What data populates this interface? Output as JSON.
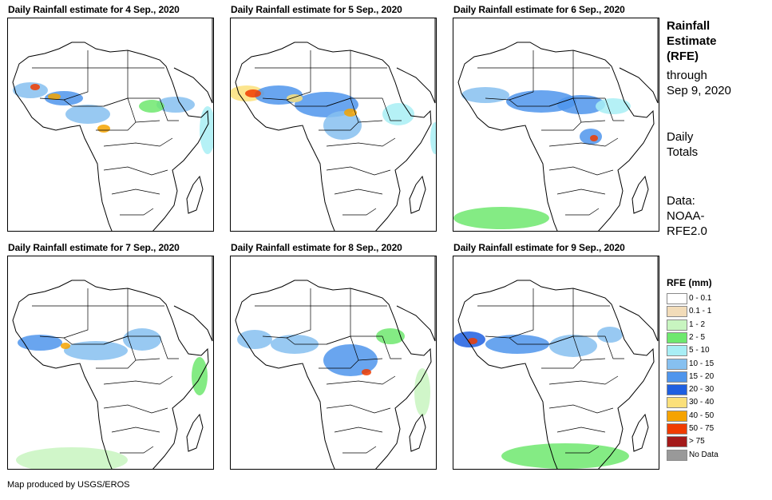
{
  "maps": [
    {
      "title": "Daily Rainfall estimate for 4 Sep., 2020"
    },
    {
      "title": "Daily Rainfall estimate for 5 Sep., 2020"
    },
    {
      "title": "Daily Rainfall estimate for 6 Sep., 2020"
    },
    {
      "title": "Daily Rainfall estimate for 7 Sep., 2020"
    },
    {
      "title": "Daily Rainfall estimate for 8 Sep., 2020"
    },
    {
      "title": "Daily Rainfall estimate for 9 Sep., 2020"
    }
  ],
  "side": {
    "title_line1": "Rainfall",
    "title_line2": "Estimate",
    "title_line3": "(RFE)",
    "through": "through",
    "date": "Sep 9, 2020",
    "totals_line1": "Daily",
    "totals_line2": "Totals",
    "data_line1": "Data:",
    "data_line2": "NOAA-",
    "data_line3": "RFE2.0"
  },
  "legend": {
    "title": "RFE (mm)",
    "items": [
      {
        "label": "0 - 0.1",
        "color": "#ffffff"
      },
      {
        "label": "0.1 - 1",
        "color": "#f2dcb9"
      },
      {
        "label": "1 - 2",
        "color": "#c8f5c0"
      },
      {
        "label": "2 - 5",
        "color": "#6ee86e"
      },
      {
        "label": "5 - 10",
        "color": "#a8eef5"
      },
      {
        "label": "10 - 15",
        "color": "#86c0f0"
      },
      {
        "label": "15 - 20",
        "color": "#4f95ec"
      },
      {
        "label": "20 - 30",
        "color": "#1f5fe0"
      },
      {
        "label": "30 - 40",
        "color": "#fbe07a"
      },
      {
        "label": "40 - 50",
        "color": "#f5a300"
      },
      {
        "label": "50 - 75",
        "color": "#f03c00"
      },
      {
        "label": "> 75",
        "color": "#a31a1a"
      },
      {
        "label": "No Data",
        "color": "#999999"
      }
    ]
  },
  "credit": "Map produced by USGS/EROS"
}
